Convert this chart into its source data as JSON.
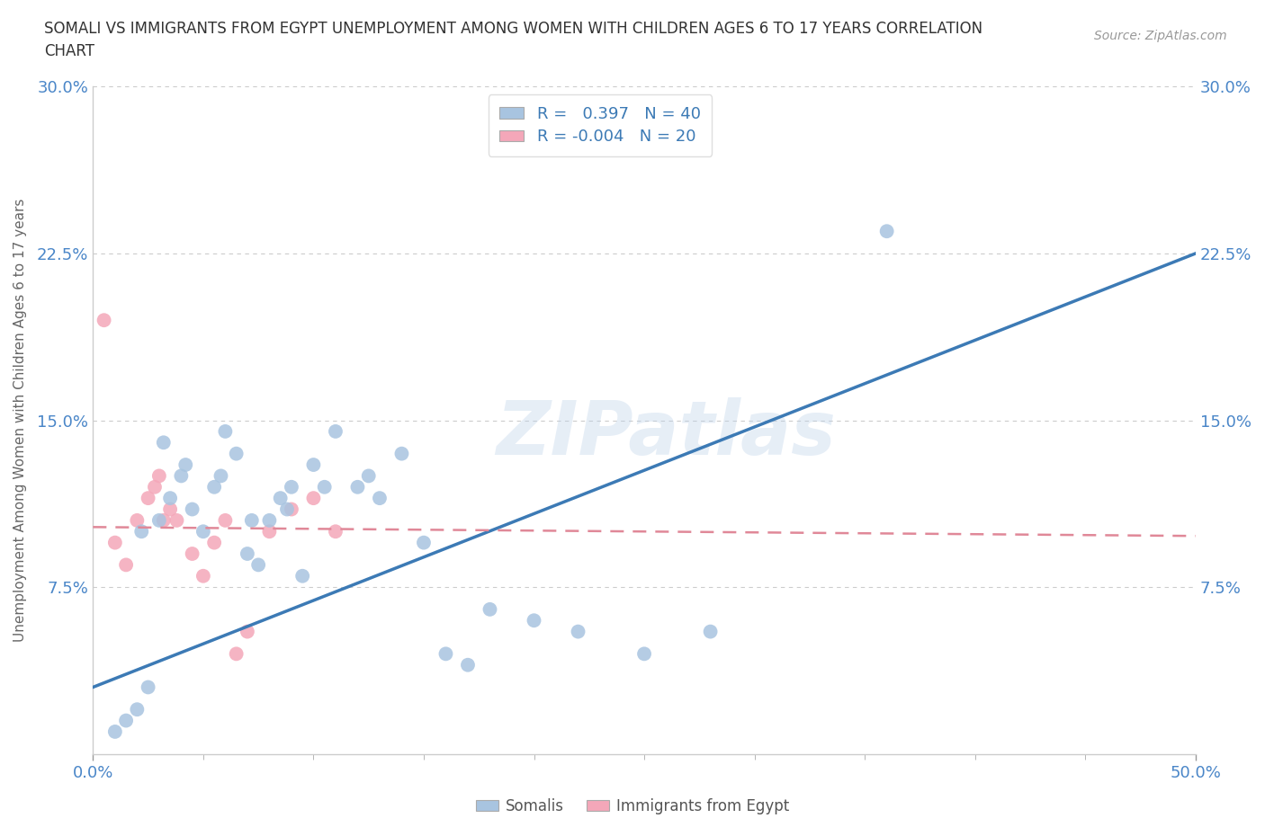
{
  "title": "SOMALI VS IMMIGRANTS FROM EGYPT UNEMPLOYMENT AMONG WOMEN WITH CHILDREN AGES 6 TO 17 YEARS CORRELATION\nCHART",
  "source": "Source: ZipAtlas.com",
  "ylabel": "Unemployment Among Women with Children Ages 6 to 17 years",
  "xlim": [
    0.0,
    50.0
  ],
  "ylim": [
    0.0,
    30.0
  ],
  "somali_color": "#a8c4e0",
  "egypt_color": "#f4a7b9",
  "somali_line_color": "#3c7ab5",
  "egypt_line_color": "#e08898",
  "R_somali": 0.397,
  "N_somali": 40,
  "R_egypt": -0.004,
  "N_egypt": 20,
  "legend_label1": "Somalis",
  "legend_label2": "Immigrants from Egypt",
  "watermark": "ZIPatlas",
  "somali_line_x0": 0.0,
  "somali_line_y0": 3.0,
  "somali_line_x1": 50.0,
  "somali_line_y1": 22.5,
  "egypt_line_x0": 0.0,
  "egypt_line_y0": 10.2,
  "egypt_line_x1": 50.0,
  "egypt_line_y1": 9.8,
  "somali_x": [
    1.0,
    1.5,
    2.0,
    2.5,
    3.0,
    3.5,
    4.0,
    4.5,
    5.0,
    5.5,
    6.0,
    6.5,
    7.0,
    7.5,
    8.0,
    8.5,
    9.0,
    9.5,
    10.0,
    11.0,
    12.0,
    13.0,
    14.0,
    15.0,
    16.0,
    17.0,
    18.0,
    20.0,
    22.0,
    25.0,
    28.0,
    36.0,
    2.2,
    3.2,
    4.2,
    5.8,
    7.2,
    8.8,
    10.5,
    12.5
  ],
  "somali_y": [
    1.0,
    1.5,
    2.0,
    3.0,
    10.5,
    11.5,
    12.5,
    11.0,
    10.0,
    12.0,
    14.5,
    13.5,
    9.0,
    8.5,
    10.5,
    11.5,
    12.0,
    8.0,
    13.0,
    14.5,
    12.0,
    11.5,
    13.5,
    9.5,
    4.5,
    4.0,
    6.5,
    6.0,
    5.5,
    4.5,
    5.5,
    23.5,
    10.0,
    14.0,
    13.0,
    12.5,
    10.5,
    11.0,
    12.0,
    12.5
  ],
  "egypt_x": [
    0.5,
    1.0,
    1.5,
    2.0,
    2.5,
    2.8,
    3.0,
    3.5,
    3.8,
    4.5,
    5.0,
    5.5,
    6.0,
    6.5,
    7.0,
    8.0,
    9.0,
    10.0,
    11.0,
    3.2
  ],
  "egypt_y": [
    19.5,
    9.5,
    8.5,
    10.5,
    11.5,
    12.0,
    12.5,
    11.0,
    10.5,
    9.0,
    8.0,
    9.5,
    10.5,
    4.5,
    5.5,
    10.0,
    11.0,
    11.5,
    10.0,
    10.5
  ]
}
